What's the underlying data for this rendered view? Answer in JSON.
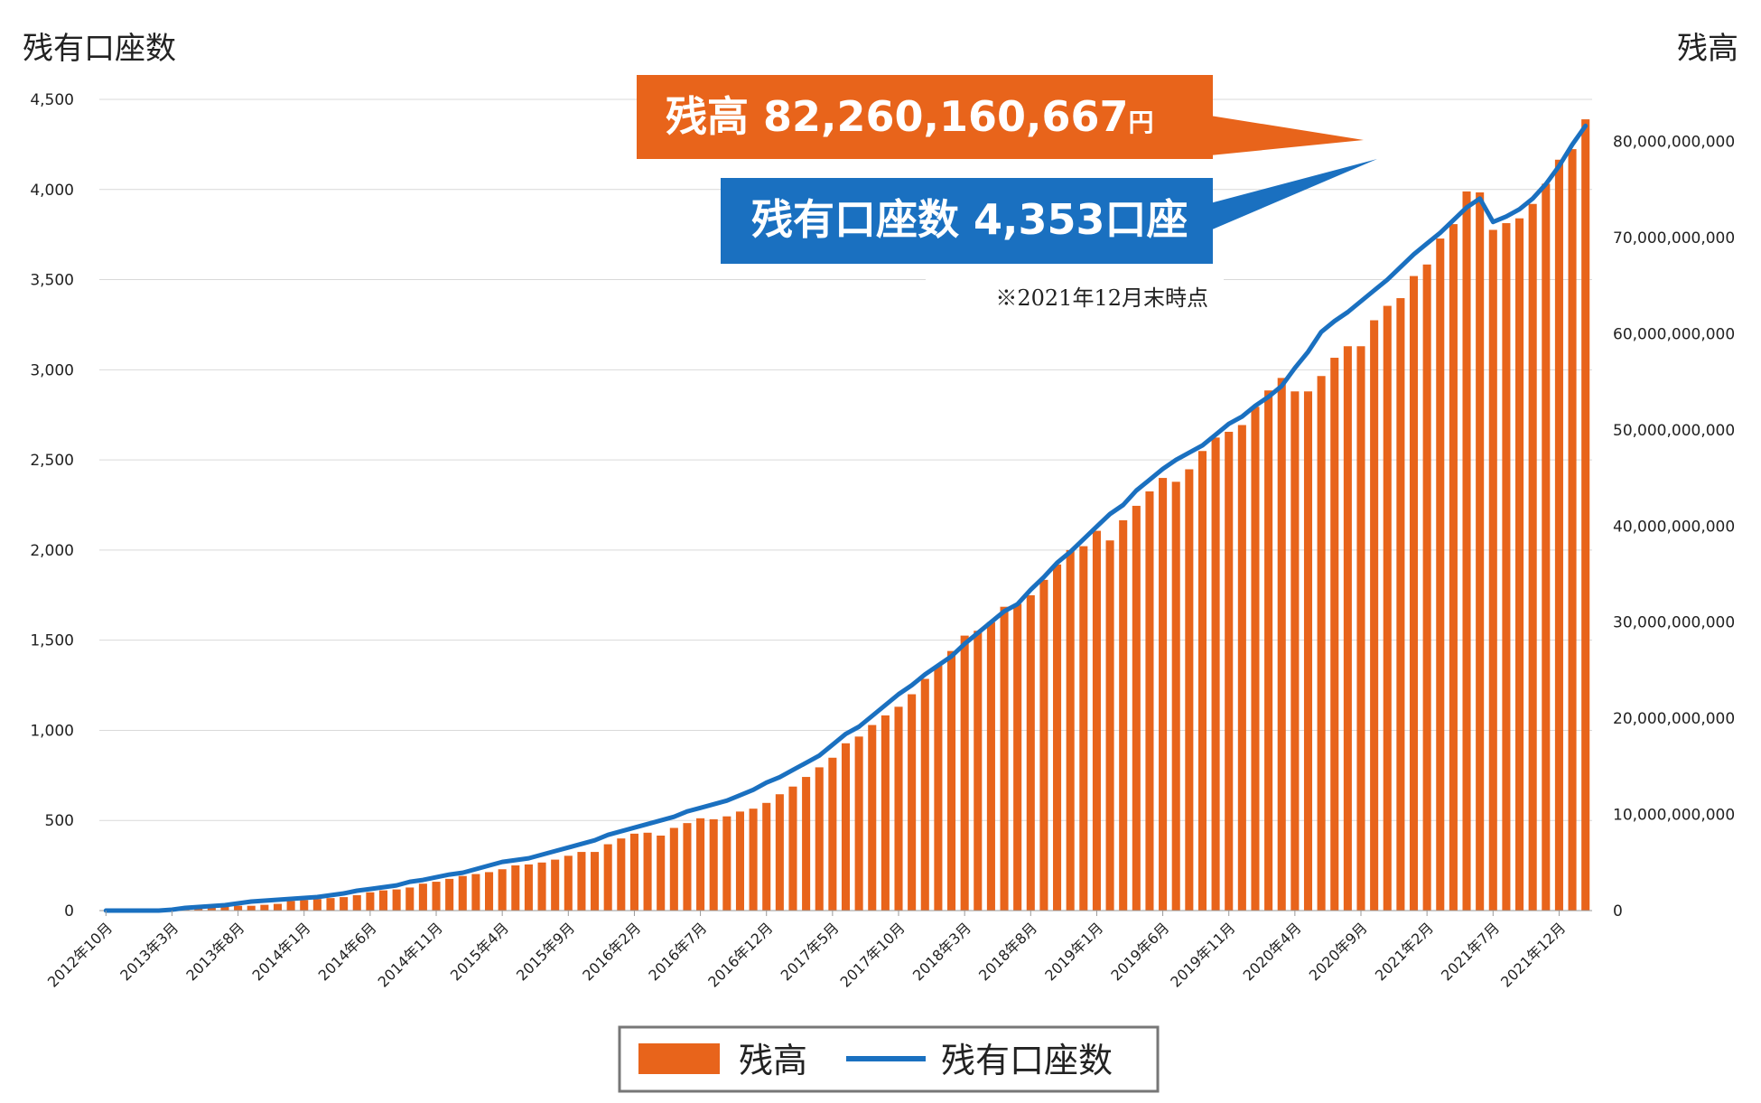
{
  "chart_data": {
    "type": "bar+line",
    "left_axis_title": "残有口座数",
    "right_axis_title": "残高",
    "ylim_left": [
      0,
      4500
    ],
    "ylim_right": [
      0,
      84375000000
    ],
    "left_ticks": [
      "0",
      "500",
      "1,000",
      "1,500",
      "2,000",
      "2,500",
      "3,000",
      "3,500",
      "4,000",
      "4,500"
    ],
    "left_tick_values": [
      0,
      500,
      1000,
      1500,
      2000,
      2500,
      3000,
      3500,
      4000,
      4500
    ],
    "right_ticks": [
      "0",
      "10,000,000,000",
      "20,000,000,000",
      "30,000,000,000",
      "40,000,000,000",
      "50,000,000,000",
      "60,000,000,000",
      "70,000,000,000",
      "80,000,000,000"
    ],
    "right_tick_values": [
      0,
      10000000000,
      20000000000,
      30000000000,
      40000000000,
      50000000000,
      60000000000,
      70000000000,
      80000000000
    ],
    "x_tick_labels": [
      "2012年10月",
      "2013年3月",
      "2013年8月",
      "2014年1月",
      "2014年6月",
      "2014年11月",
      "2015年4月",
      "2015年9月",
      "2016年2月",
      "2016年7月",
      "2016年12月",
      "2017年5月",
      "2017年10月",
      "2018年3月",
      "2018年8月",
      "2019年1月",
      "2019年6月",
      "2019年11月",
      "2020年4月",
      "2020年9月",
      "2021年2月",
      "2021年7月",
      "2021年12月"
    ],
    "x_tick_step": 5,
    "grid": true,
    "legend_position": "bottom",
    "series": [
      {
        "name": "残高",
        "type": "bar",
        "axis": "right",
        "color": "#E8641B",
        "values_billion_yen": [
          0,
          0,
          0,
          0,
          0,
          0,
          0.1,
          0.2,
          0.3,
          0.4,
          0.5,
          0.5,
          0.6,
          0.7,
          1.0,
          1.1,
          1.2,
          1.3,
          1.4,
          1.6,
          1.9,
          2.1,
          2.2,
          2.4,
          2.8,
          3.0,
          3.3,
          3.6,
          3.8,
          4.0,
          4.3,
          4.7,
          4.8,
          5.0,
          5.3,
          5.7,
          6.1,
          6.1,
          6.9,
          7.5,
          8.0,
          8.1,
          7.8,
          8.6,
          9.1,
          9.6,
          9.5,
          9.8,
          10.3,
          10.6,
          11.2,
          12.1,
          12.9,
          13.9,
          14.9,
          15.9,
          17.4,
          18.1,
          19.3,
          20.3,
          21.2,
          22.5,
          24.1,
          25.5,
          27.0,
          28.6,
          29.1,
          30.0,
          31.6,
          31.9,
          32.8,
          34.4,
          36.0,
          37.5,
          37.9,
          39.5,
          38.5,
          40.6,
          42.1,
          43.6,
          45.0,
          44.6,
          45.9,
          47.8,
          49.2,
          49.8,
          50.5,
          52.4,
          54.1,
          55.4,
          54.0,
          54.0,
          55.6,
          57.5,
          58.7,
          58.7,
          61.4,
          62.9,
          63.7,
          66.0,
          67.2,
          69.9,
          71.4,
          74.8,
          74.7,
          70.8,
          71.5,
          72.0,
          73.5,
          75.6,
          78.1,
          79.2,
          82.3
        ]
      },
      {
        "name": "残有口座数",
        "type": "line",
        "axis": "left",
        "color": "#1A70C0",
        "values": [
          0,
          0,
          0,
          0,
          0,
          5,
          15,
          20,
          25,
          30,
          40,
          50,
          55,
          60,
          65,
          70,
          75,
          85,
          95,
          110,
          120,
          130,
          140,
          160,
          170,
          185,
          200,
          210,
          230,
          250,
          270,
          280,
          290,
          310,
          330,
          350,
          370,
          390,
          420,
          440,
          460,
          480,
          500,
          520,
          550,
          570,
          590,
          610,
          640,
          670,
          710,
          740,
          780,
          820,
          860,
          920,
          980,
          1020,
          1080,
          1140,
          1200,
          1250,
          1310,
          1360,
          1410,
          1480,
          1540,
          1600,
          1660,
          1700,
          1780,
          1850,
          1930,
          1990,
          2060,
          2130,
          2200,
          2250,
          2330,
          2390,
          2450,
          2500,
          2540,
          2580,
          2640,
          2700,
          2740,
          2800,
          2850,
          2910,
          3010,
          3100,
          3210,
          3270,
          3320,
          3380,
          3440,
          3500,
          3570,
          3640,
          3700,
          3760,
          3830,
          3900,
          3950,
          3820,
          3850,
          3890,
          3950,
          4030,
          4130,
          4250,
          4353
        ]
      }
    ],
    "annotations": [
      {
        "text": "残高 82,260,160,667",
        "unit": "円",
        "color": "#E8641B"
      },
      {
        "text": "残有口座数 4,353口座",
        "color": "#1A70C0"
      },
      {
        "text": "※2021年12月末時点"
      }
    ]
  },
  "legend": {
    "bar_label": "残高",
    "line_label": "残有口座数"
  }
}
